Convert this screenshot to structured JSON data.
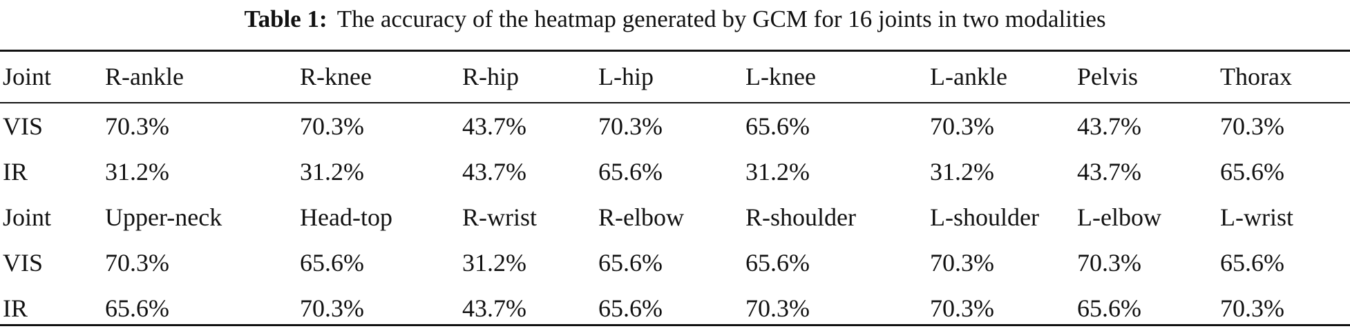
{
  "caption": {
    "label": "Table 1:",
    "text": "The accuracy of the heatmap generated by GCM for 16 joints in two modalities"
  },
  "table": {
    "block1": {
      "header": [
        "Joint",
        "R-ankle",
        "R-knee",
        "R-hip",
        "L-hip",
        "L-knee",
        "L-ankle",
        "Pelvis",
        "Thorax"
      ],
      "vis": [
        "VIS",
        "70.3%",
        "70.3%",
        "43.7%",
        "70.3%",
        "65.6%",
        "70.3%",
        "43.7%",
        "70.3%"
      ],
      "ir": [
        "IR",
        "31.2%",
        "31.2%",
        "43.7%",
        "65.6%",
        "31.2%",
        "31.2%",
        "43.7%",
        "65.6%"
      ]
    },
    "block2": {
      "header": [
        "Joint",
        "Upper-neck",
        "Head-top",
        "R-wrist",
        "R-elbow",
        "R-shoulder",
        "L-shoulder",
        "L-elbow",
        "L-wrist"
      ],
      "vis": [
        "VIS",
        "70.3%",
        "65.6%",
        "31.2%",
        "65.6%",
        "65.6%",
        "70.3%",
        "70.3%",
        "65.6%"
      ],
      "ir": [
        "IR",
        "65.6%",
        "70.3%",
        "43.7%",
        "65.6%",
        "70.3%",
        "70.3%",
        "65.6%",
        "70.3%"
      ]
    }
  }
}
